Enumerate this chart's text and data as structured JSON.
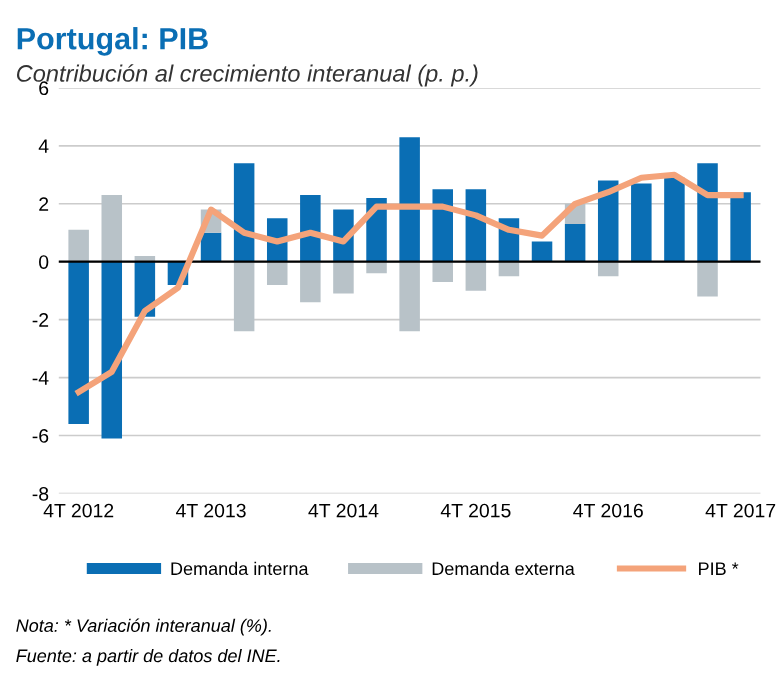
{
  "chart_data": {
    "type": "bar",
    "stacked": true,
    "title": "Portugal: PIB",
    "subtitle": "Contribución al crecimiento interanual (p. p.)",
    "categories": [
      "4T 2012",
      null,
      null,
      null,
      "4T 2013",
      null,
      null,
      null,
      "4T 2014",
      null,
      null,
      null,
      "4T 2015",
      null,
      null,
      null,
      "4T 2016",
      null,
      null,
      null,
      "4T 2017"
    ],
    "series": [
      {
        "name": "Demanda interna",
        "color": "#0a6eb4",
        "values": [
          -5.6,
          -6.1,
          -1.9,
          -0.8,
          1.0,
          3.4,
          1.5,
          2.3,
          1.8,
          2.2,
          4.3,
          2.5,
          2.5,
          1.5,
          0.7,
          1.3,
          2.8,
          2.7,
          2.9,
          3.4,
          2.4
        ]
      },
      {
        "name": "Demanda externa",
        "color": "#b8c2c8",
        "values": [
          1.1,
          2.3,
          0.2,
          null,
          0.8,
          -2.4,
          -0.8,
          -1.4,
          -1.1,
          -0.4,
          -2.4,
          -0.7,
          -1.0,
          -0.5,
          null,
          0.7,
          -0.5,
          null,
          null,
          -1.2,
          null
        ]
      },
      {
        "name": "PIB *",
        "type": "line",
        "color": "#f4a37a",
        "values": [
          -4.5,
          -3.8,
          -1.7,
          -0.9,
          1.8,
          1.0,
          0.7,
          1.0,
          0.7,
          1.9,
          1.9,
          1.9,
          1.6,
          1.1,
          0.9,
          2.0,
          2.4,
          2.9,
          3.0,
          2.3,
          2.3
        ]
      }
    ],
    "ylim": [
      -8,
      6
    ],
    "yticks": [
      -8,
      -6,
      -4,
      -2,
      0,
      2,
      4,
      6
    ],
    "grid": "y",
    "legend": "bottom",
    "annotations": [
      "Nota: * Variación interanual (%).",
      "Fuente: a partir de datos del INE."
    ]
  }
}
